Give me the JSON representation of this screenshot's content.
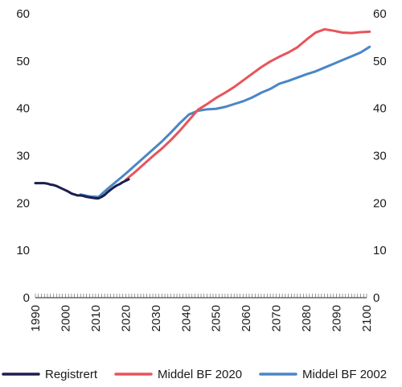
{
  "chart_data": {
    "type": "line",
    "title": "",
    "xlabel": "",
    "ylabel": "",
    "xlim": [
      1990,
      2100
    ],
    "ylim": [
      0,
      60
    ],
    "x_ticks": [
      "1990",
      "2000",
      "2010",
      "2020",
      "2030",
      "2040",
      "2050",
      "2060",
      "2070",
      "2080",
      "2090",
      "2100"
    ],
    "y_ticks": [
      "0",
      "10",
      "20",
      "30",
      "40",
      "50",
      "60"
    ],
    "grid": false,
    "legend_position": "bottom",
    "series": [
      {
        "name": "Registrert",
        "color": "#1b1e4d",
        "x": [
          1990,
          1991,
          1992,
          1993,
          1994,
          1995,
          1996,
          1997,
          1998,
          1999,
          2000,
          2001,
          2002,
          2003,
          2004,
          2005,
          2006,
          2007,
          2008,
          2009,
          2010,
          2011,
          2012,
          2013,
          2014,
          2015,
          2016,
          2017,
          2018,
          2019,
          2020,
          2021
        ],
        "y": [
          24.2,
          24.2,
          24.2,
          24.2,
          24.1,
          23.9,
          23.8,
          23.6,
          23.3,
          23.0,
          22.7,
          22.4,
          22.0,
          21.8,
          21.6,
          21.6,
          21.5,
          21.3,
          21.2,
          21.1,
          21.0,
          21.0,
          21.3,
          21.7,
          22.3,
          22.8,
          23.3,
          23.7,
          24.0,
          24.4,
          24.7,
          25.0
        ]
      },
      {
        "name": "Middel BF 2020",
        "color": "#e8545a",
        "x": [
          2020,
          2023,
          2026,
          2029,
          2032,
          2035,
          2038,
          2041,
          2044,
          2047,
          2050,
          2053,
          2056,
          2059,
          2062,
          2065,
          2068,
          2071,
          2074,
          2077,
          2080,
          2083,
          2086,
          2089,
          2092,
          2095,
          2098,
          2101
        ],
        "y": [
          24.9,
          26.5,
          28.2,
          29.9,
          31.5,
          33.3,
          35.3,
          37.5,
          39.7,
          40.9,
          42.2,
          43.3,
          44.5,
          45.9,
          47.3,
          48.7,
          49.9,
          50.9,
          51.8,
          52.9,
          54.5,
          56.0,
          56.7,
          56.4,
          56.0,
          55.9,
          56.1,
          56.2
        ]
      },
      {
        "name": "Middel BF 2002",
        "color": "#4a86c6",
        "x": [
          2005,
          2008,
          2011,
          2014,
          2017,
          2020,
          2023,
          2026,
          2029,
          2032,
          2035,
          2038,
          2041,
          2044,
          2047,
          2050,
          2053,
          2056,
          2059,
          2062,
          2065,
          2068,
          2071,
          2074,
          2077,
          2080,
          2083,
          2086,
          2089,
          2092,
          2095,
          2098,
          2101
        ],
        "y": [
          21.8,
          21.4,
          21.3,
          23.0,
          24.6,
          26.2,
          27.9,
          29.6,
          31.3,
          33.0,
          34.9,
          36.9,
          38.7,
          39.5,
          39.8,
          39.9,
          40.3,
          40.9,
          41.5,
          42.3,
          43.3,
          44.1,
          45.2,
          45.8,
          46.5,
          47.2,
          47.8,
          48.6,
          49.4,
          50.2,
          51.0,
          51.8,
          53.0
        ]
      }
    ]
  }
}
